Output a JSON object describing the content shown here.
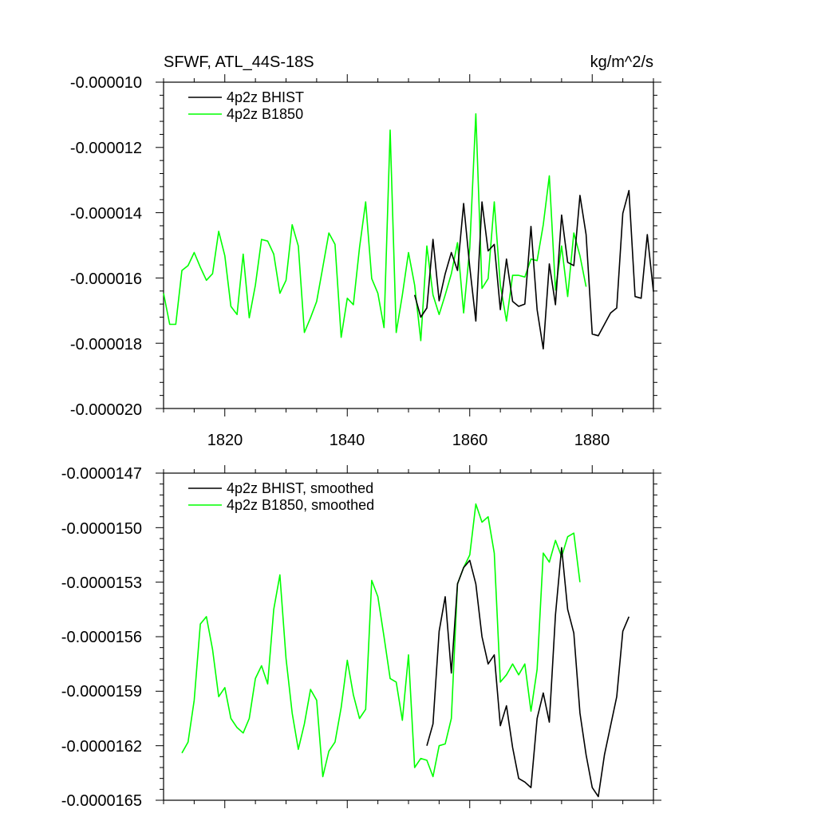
{
  "chart_data": [
    {
      "type": "line",
      "title": "SFWF, ATL_44S-18S",
      "units": "kg/m^2/s",
      "xlim": [
        1810,
        1890
      ],
      "ylim": [
        -2e-05,
        -1e-05
      ],
      "yticks": [
        -1e-05,
        -1.2e-05,
        -1.4e-05,
        -1.6e-05,
        -1.8e-05,
        -2e-05
      ],
      "yticklabels": [
        "-0.000010",
        "-0.000012",
        "-0.000014",
        "-0.000016",
        "-0.000018",
        "-0.000020"
      ],
      "xticks": [
        1820,
        1840,
        1860,
        1880
      ],
      "xticklabels": [
        "1820",
        "1840",
        "1860",
        "1880"
      ],
      "legend": "top-left",
      "series": [
        {
          "name": "4p2z BHIST",
          "color": "#000000",
          "x_start": 1851,
          "values": [
            -1.652e-05,
            -1.72e-05,
            -1.692e-05,
            -1.482e-05,
            -1.67e-05,
            -1.587e-05,
            -1.522e-05,
            -1.577e-05,
            -1.372e-05,
            -1.567e-05,
            -1.732e-05,
            -1.367e-05,
            -1.517e-05,
            -1.497e-05,
            -1.697e-05,
            -1.542e-05,
            -1.672e-05,
            -1.687e-05,
            -1.68e-05,
            -1.442e-05,
            -1.697e-05,
            -1.817e-05,
            -1.557e-05,
            -1.682e-05,
            -1.407e-05,
            -1.552e-05,
            -1.562e-05,
            -1.347e-05,
            -1.467e-05,
            -1.772e-05,
            -1.777e-05,
            -1.742e-05,
            -1.707e-05,
            -1.692e-05,
            -1.402e-05,
            -1.332e-05,
            -1.657e-05,
            -1.662e-05,
            -1.467e-05,
            -1.642e-05
          ]
        },
        {
          "name": "4p2z B1850",
          "color": "#00ff00",
          "x_start": 1810,
          "values": [
            -1.647e-05,
            -1.742e-05,
            -1.742e-05,
            -1.577e-05,
            -1.562e-05,
            -1.522e-05,
            -1.567e-05,
            -1.607e-05,
            -1.587e-05,
            -1.457e-05,
            -1.532e-05,
            -1.687e-05,
            -1.712e-05,
            -1.527e-05,
            -1.722e-05,
            -1.622e-05,
            -1.482e-05,
            -1.487e-05,
            -1.527e-05,
            -1.647e-05,
            -1.607e-05,
            -1.437e-05,
            -1.502e-05,
            -1.767e-05,
            -1.722e-05,
            -1.672e-05,
            -1.567e-05,
            -1.462e-05,
            -1.497e-05,
            -1.782e-05,
            -1.662e-05,
            -1.682e-05,
            -1.507e-05,
            -1.367e-05,
            -1.602e-05,
            -1.647e-05,
            -1.752e-05,
            -1.147e-05,
            -1.767e-05,
            -1.652e-05,
            -1.522e-05,
            -1.622e-05,
            -1.792e-05,
            -1.502e-05,
            -1.652e-05,
            -1.712e-05,
            -1.652e-05,
            -1.587e-05,
            -1.492e-05,
            -1.707e-05,
            -1.507e-05,
            -1.097e-05,
            -1.632e-05,
            -1.602e-05,
            -1.367e-05,
            -1.622e-05,
            -1.732e-05,
            -1.592e-05,
            -1.592e-05,
            -1.597e-05,
            -1.542e-05,
            -1.547e-05,
            -1.437e-05,
            -1.287e-05,
            -1.637e-05,
            -1.502e-05,
            -1.657e-05,
            -1.462e-05,
            -1.532e-05,
            -1.627e-05
          ]
        }
      ]
    },
    {
      "type": "line",
      "title": "",
      "units": "",
      "xlim": [
        1810,
        1890
      ],
      "ylim": [
        -1.65e-05,
        -1.47e-05
      ],
      "yticks": [
        -1.47e-05,
        -1.5e-05,
        -1.53e-05,
        -1.56e-05,
        -1.59e-05,
        -1.62e-05,
        -1.65e-05
      ],
      "yticklabels": [
        "-0.0000147",
        "-0.0000150",
        "-0.0000153",
        "-0.0000156",
        "-0.0000159",
        "-0.0000162",
        "-0.0000165"
      ],
      "xticks": [
        1820,
        1840,
        1860,
        1880
      ],
      "xticklabels": [],
      "legend": "top-left",
      "series": [
        {
          "name": "4p2z BHIST, smoothed",
          "color": "#000000",
          "x_start": 1853,
          "values": [
            -1.62e-05,
            -1.608e-05,
            -1.557e-05,
            -1.538e-05,
            -1.58e-05,
            -1.531e-05,
            -1.522e-05,
            -1.518e-05,
            -1.531e-05,
            -1.56e-05,
            -1.575e-05,
            -1.57e-05,
            -1.609e-05,
            -1.598e-05,
            -1.621e-05,
            -1.638e-05,
            -1.64e-05,
            -1.643e-05,
            -1.605e-05,
            -1.591e-05,
            -1.607e-05,
            -1.548e-05,
            -1.511e-05,
            -1.545e-05,
            -1.558e-05,
            -1.602e-05,
            -1.625e-05,
            -1.643e-05,
            -1.648e-05,
            -1.625e-05,
            -1.609e-05,
            -1.593e-05,
            -1.557e-05,
            -1.549e-05
          ]
        },
        {
          "name": "4p2z B1850, smoothed",
          "color": "#00ff00",
          "x_start": 1813,
          "values": [
            -1.624e-05,
            -1.618e-05,
            -1.595e-05,
            -1.553e-05,
            -1.549e-05,
            -1.567e-05,
            -1.593e-05,
            -1.588e-05,
            -1.605e-05,
            -1.61e-05,
            -1.613e-05,
            -1.605e-05,
            -1.583e-05,
            -1.576e-05,
            -1.586e-05,
            -1.545e-05,
            -1.526e-05,
            -1.572e-05,
            -1.602e-05,
            -1.622e-05,
            -1.608e-05,
            -1.589e-05,
            -1.595e-05,
            -1.637e-05,
            -1.623e-05,
            -1.618e-05,
            -1.599e-05,
            -1.573e-05,
            -1.592e-05,
            -1.605e-05,
            -1.6e-05,
            -1.529e-05,
            -1.538e-05,
            -1.56e-05,
            -1.583e-05,
            -1.585e-05,
            -1.606e-05,
            -1.57e-05,
            -1.632e-05,
            -1.627e-05,
            -1.628e-05,
            -1.637e-05,
            -1.62e-05,
            -1.619e-05,
            -1.605e-05,
            -1.531e-05,
            -1.522e-05,
            -1.515e-05,
            -1.487e-05,
            -1.497e-05,
            -1.494e-05,
            -1.514e-05,
            -1.585e-05,
            -1.581e-05,
            -1.575e-05,
            -1.581e-05,
            -1.575e-05,
            -1.601e-05,
            -1.578e-05,
            -1.514e-05,
            -1.519e-05,
            -1.507e-05,
            -1.516e-05,
            -1.505e-05,
            -1.503e-05,
            -1.53e-05
          ]
        }
      ]
    }
  ]
}
